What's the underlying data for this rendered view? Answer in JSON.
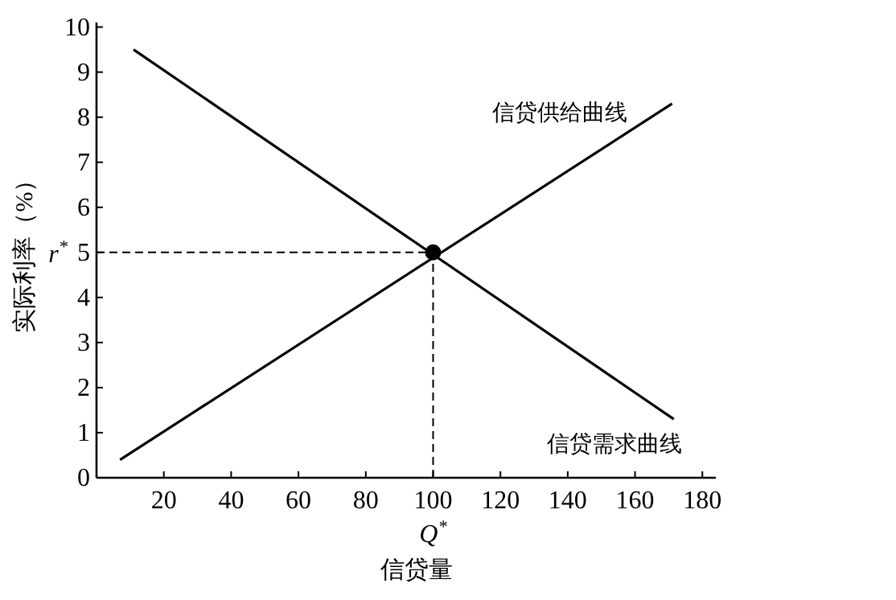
{
  "chart_data": {
    "type": "line",
    "xlabel": "信贷量",
    "ylabel": "实际利率（%）",
    "xlim": [
      0,
      184
    ],
    "ylim": [
      0,
      10.1
    ],
    "xticks": [
      20,
      40,
      60,
      80,
      100,
      120,
      140,
      160,
      180
    ],
    "yticks": [
      0,
      1,
      2,
      3,
      4,
      5,
      6,
      7,
      8,
      9,
      10
    ],
    "series": [
      {
        "name": "信贷供给曲线",
        "color": "#000000",
        "x": [
          7,
          171
        ],
        "values": [
          0.4,
          8.3
        ]
      },
      {
        "name": "信贷需求曲线",
        "color": "#000000",
        "x": [
          11,
          171.5
        ],
        "values": [
          9.5,
          1.3
        ]
      },
      {
        "type": "scatter",
        "color": "#000000",
        "x": [
          100
        ],
        "values": [
          5
        ],
        "marker": "circle"
      }
    ],
    "ref_lines": [
      {
        "axis": "y",
        "value": 5,
        "line_style": "dashed"
      },
      {
        "axis": "x",
        "value": 100,
        "line_style": "dashed"
      }
    ],
    "annotations": [
      {
        "text": "r$^{*}$",
        "x": 0,
        "y": 5
      },
      {
        "text": "Q$^{*}$",
        "x": 100,
        "y": 0
      }
    ],
    "line_style": "solid"
  }
}
